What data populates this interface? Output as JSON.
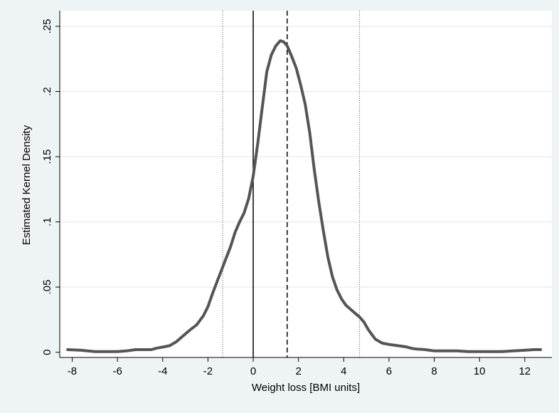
{
  "chart_data": {
    "type": "line",
    "title": "",
    "xlabel": "Weight loss [BMI units]",
    "ylabel": "Estimated Kernel Density",
    "xlim": [
      -8.55,
      13.2
    ],
    "ylim": [
      -0.004,
      0.262
    ],
    "x_ticks": [
      -8,
      -6,
      -4,
      -2,
      0,
      2,
      4,
      6,
      8,
      10,
      12
    ],
    "x_tick_labels": [
      "-8",
      "-6",
      "-4",
      "-2",
      "0",
      "2",
      "4",
      "6",
      "8",
      "10",
      "12"
    ],
    "y_ticks": [
      0,
      0.05,
      0.1,
      0.15,
      0.2,
      0.25
    ],
    "y_tick_labels": [
      "0",
      ".05",
      ".1",
      ".15",
      ".2",
      ".25"
    ],
    "grid": true,
    "series": [
      {
        "color": "#555555",
        "x": [
          -8.2,
          -7.6,
          -7.0,
          -6.5,
          -6.0,
          -5.6,
          -5.2,
          -4.8,
          -4.5,
          -4.3,
          -4.0,
          -3.7,
          -3.4,
          -3.2,
          -3.0,
          -2.8,
          -2.5,
          -2.2,
          -2.0,
          -1.8,
          -1.6,
          -1.4,
          -1.2,
          -1.0,
          -0.8,
          -0.6,
          -0.4,
          -0.2,
          0.0,
          0.2,
          0.4,
          0.6,
          0.8,
          1.0,
          1.2,
          1.35,
          1.5,
          1.7,
          1.9,
          2.1,
          2.3,
          2.5,
          2.7,
          2.9,
          3.1,
          3.3,
          3.5,
          3.7,
          3.9,
          4.1,
          4.3,
          4.5,
          4.7,
          4.9,
          5.1,
          5.4,
          5.7,
          6.0,
          6.2,
          6.4,
          6.6,
          6.8,
          7.0,
          7.2,
          7.6,
          8.0,
          8.5,
          9.0,
          9.5,
          10.0,
          10.5,
          11.0,
          11.5,
          12.0,
          12.4,
          12.7
        ],
        "y": [
          0.002,
          0.0015,
          0.0005,
          0.0005,
          0.0005,
          0.001,
          0.002,
          0.002,
          0.002,
          0.003,
          0.004,
          0.005,
          0.008,
          0.011,
          0.014,
          0.017,
          0.021,
          0.028,
          0.035,
          0.045,
          0.054,
          0.063,
          0.072,
          0.081,
          0.092,
          0.1,
          0.107,
          0.118,
          0.135,
          0.16,
          0.188,
          0.215,
          0.228,
          0.235,
          0.239,
          0.238,
          0.235,
          0.227,
          0.218,
          0.205,
          0.19,
          0.168,
          0.14,
          0.115,
          0.093,
          0.073,
          0.058,
          0.048,
          0.041,
          0.036,
          0.033,
          0.03,
          0.027,
          0.023,
          0.017,
          0.01,
          0.007,
          0.006,
          0.0055,
          0.005,
          0.0045,
          0.004,
          0.003,
          0.0025,
          0.002,
          0.001,
          0.001,
          0.001,
          0.0005,
          0.0005,
          0.0005,
          0.0005,
          0.001,
          0.0015,
          0.002,
          0.002
        ]
      }
    ],
    "reference_lines": [
      {
        "x": -1.35,
        "style": "dotted"
      },
      {
        "x": 0,
        "style": "solid"
      },
      {
        "x": 1.5,
        "style": "dashed"
      },
      {
        "x": 4.7,
        "style": "dotted"
      }
    ]
  }
}
